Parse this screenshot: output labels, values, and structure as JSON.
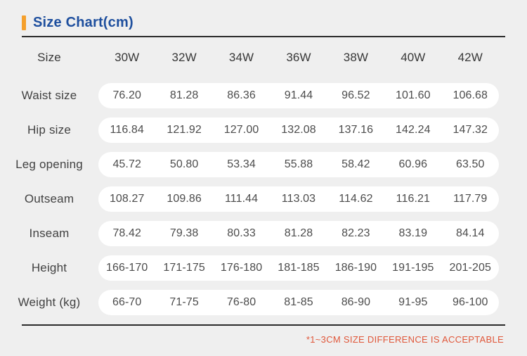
{
  "page_title": "Size Chart(cm)",
  "colors": {
    "background": "#efefef",
    "accent_orange": "#f5a02c",
    "title_blue": "#1e4f9e",
    "note_red": "#e0573a",
    "rule_dark": "#2b2b2b",
    "row_pill_white": "#ffffff",
    "header_text": "#383838",
    "value_text": "#4c4c4c"
  },
  "chart_data": {
    "type": "table",
    "title": "Size Chart(cm)",
    "columns": [
      "Size",
      "30W",
      "32W",
      "34W",
      "36W",
      "38W",
      "40W",
      "42W"
    ],
    "rows": [
      {
        "label": "Waist size",
        "values": [
          "76.20",
          "81.28",
          "86.36",
          "91.44",
          "96.52",
          "101.60",
          "106.68"
        ]
      },
      {
        "label": "Hip size",
        "values": [
          "116.84",
          "121.92",
          "127.00",
          "132.08",
          "137.16",
          "142.24",
          "147.32"
        ]
      },
      {
        "label": "Leg opening",
        "values": [
          "45.72",
          "50.80",
          "53.34",
          "55.88",
          "58.42",
          "60.96",
          "63.50"
        ]
      },
      {
        "label": "Outseam",
        "values": [
          "108.27",
          "109.86",
          "111.44",
          "113.03",
          "114.62",
          "116.21",
          "117.79"
        ]
      },
      {
        "label": "Inseam",
        "values": [
          "78.42",
          "79.38",
          "80.33",
          "81.28",
          "82.23",
          "83.19",
          "84.14"
        ]
      },
      {
        "label": "Height",
        "values": [
          "166-170",
          "171-175",
          "176-180",
          "181-185",
          "186-190",
          "191-195",
          "201-205"
        ]
      },
      {
        "label": "Weight (kg)",
        "values": [
          "66-70",
          "71-75",
          "76-80",
          "81-85",
          "86-90",
          "91-95",
          "96-100"
        ]
      }
    ],
    "footnote": "*1~3CM SIZE DIFFERENCE IS ACCEPTABLE"
  }
}
